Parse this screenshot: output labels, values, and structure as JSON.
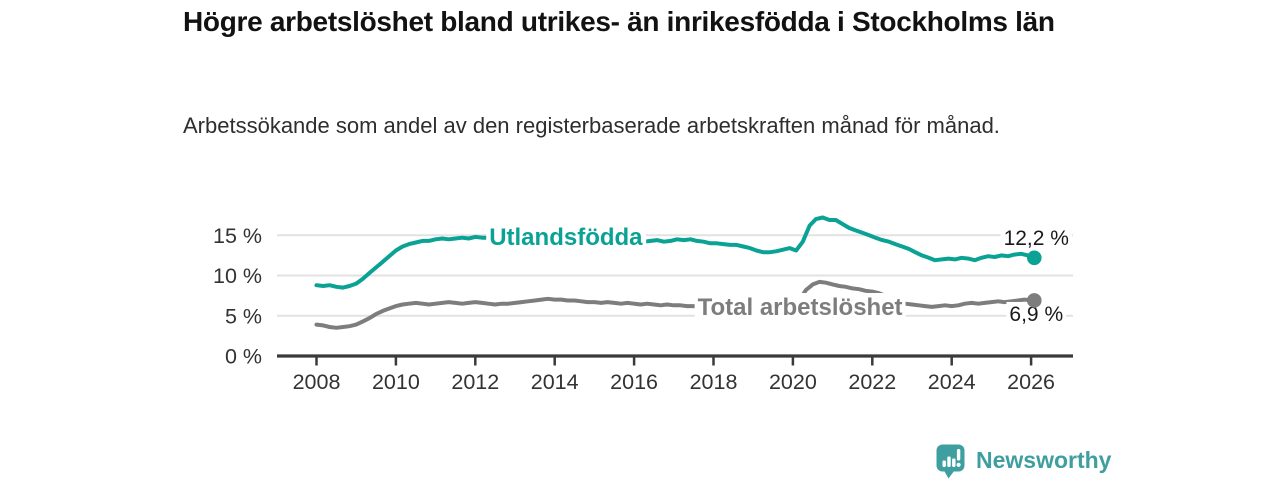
{
  "header": {
    "title": "Högre arbetslöshet bland utrikes- än inrikesfödda i Stockholms län",
    "subtitle": "Arbetssökande som andel av den registerbaserade arbetskraften månad för månad."
  },
  "branding": {
    "name": "Newsworthy",
    "icon": "bar-chart-speech-bubble-icon",
    "color": "#3f9fa0"
  },
  "chart_data": {
    "type": "line",
    "title": "Högre arbetslöshet bland utrikes- än inrikesfödda i Stockholms län",
    "xlabel": "",
    "ylabel": "",
    "unit": "%",
    "grid": "horizontal",
    "legend": "inline-series-labels",
    "xlim": [
      2007.1,
      2027.2
    ],
    "ylim": [
      0,
      17.6
    ],
    "x_ticks": [
      2008,
      2010,
      2012,
      2014,
      2016,
      2018,
      2020,
      2022,
      2024,
      2026
    ],
    "y_ticks": [
      {
        "value": 0,
        "label": "0 %"
      },
      {
        "value": 5,
        "label": "5 %"
      },
      {
        "value": 10,
        "label": "10 %"
      },
      {
        "value": 15,
        "label": "15 %"
      }
    ],
    "series": [
      {
        "name": "Utlandsfödda",
        "color": "#0aa295",
        "end_label": "12,2 %",
        "end_label_position": "above",
        "end_dot": true,
        "inline_label": {
          "text": "Utlandsfödda",
          "x": 2012.35,
          "value": 14.85
        },
        "points": [
          [
            2008.0,
            8.8
          ],
          [
            2008.17,
            8.7
          ],
          [
            2008.33,
            8.8
          ],
          [
            2008.5,
            8.6
          ],
          [
            2008.67,
            8.5
          ],
          [
            2008.83,
            8.7
          ],
          [
            2009.0,
            9.0
          ],
          [
            2009.17,
            9.6
          ],
          [
            2009.33,
            10.3
          ],
          [
            2009.5,
            11.0
          ],
          [
            2009.67,
            11.7
          ],
          [
            2009.83,
            12.4
          ],
          [
            2010.0,
            13.1
          ],
          [
            2010.17,
            13.6
          ],
          [
            2010.33,
            13.9
          ],
          [
            2010.5,
            14.1
          ],
          [
            2010.67,
            14.3
          ],
          [
            2010.83,
            14.3
          ],
          [
            2011.0,
            14.5
          ],
          [
            2011.17,
            14.6
          ],
          [
            2011.33,
            14.5
          ],
          [
            2011.5,
            14.6
          ],
          [
            2011.67,
            14.7
          ],
          [
            2011.83,
            14.6
          ],
          [
            2012.0,
            14.8
          ],
          [
            2012.17,
            14.7
          ],
          [
            2012.33,
            14.7
          ],
          [
            2012.58,
            14.6
          ],
          [
            2012.83,
            14.7
          ],
          [
            2013.08,
            14.6
          ],
          [
            2013.33,
            14.5
          ],
          [
            2013.58,
            14.6
          ],
          [
            2013.83,
            14.4
          ],
          [
            2014.08,
            14.3
          ],
          [
            2014.33,
            14.4
          ],
          [
            2014.58,
            14.2
          ],
          [
            2014.83,
            14.3
          ],
          [
            2015.08,
            14.2
          ],
          [
            2015.33,
            14.4
          ],
          [
            2015.58,
            14.3
          ],
          [
            2015.83,
            14.4
          ],
          [
            2016.08,
            14.4
          ],
          [
            2016.25,
            14.2
          ],
          [
            2016.42,
            14.3
          ],
          [
            2016.58,
            14.4
          ],
          [
            2016.75,
            14.2
          ],
          [
            2016.92,
            14.3
          ],
          [
            2017.08,
            14.5
          ],
          [
            2017.25,
            14.4
          ],
          [
            2017.42,
            14.5
          ],
          [
            2017.58,
            14.3
          ],
          [
            2017.75,
            14.2
          ],
          [
            2017.92,
            14.0
          ],
          [
            2018.08,
            14.0
          ],
          [
            2018.25,
            13.9
          ],
          [
            2018.42,
            13.8
          ],
          [
            2018.58,
            13.8
          ],
          [
            2018.75,
            13.6
          ],
          [
            2018.92,
            13.4
          ],
          [
            2019.08,
            13.1
          ],
          [
            2019.25,
            12.9
          ],
          [
            2019.42,
            12.9
          ],
          [
            2019.58,
            13.0
          ],
          [
            2019.75,
            13.2
          ],
          [
            2019.92,
            13.4
          ],
          [
            2020.08,
            13.1
          ],
          [
            2020.25,
            14.2
          ],
          [
            2020.42,
            16.2
          ],
          [
            2020.58,
            17.0
          ],
          [
            2020.75,
            17.2
          ],
          [
            2020.92,
            16.9
          ],
          [
            2021.08,
            16.9
          ],
          [
            2021.25,
            16.4
          ],
          [
            2021.42,
            15.9
          ],
          [
            2021.58,
            15.6
          ],
          [
            2021.75,
            15.3
          ],
          [
            2021.92,
            15.0
          ],
          [
            2022.08,
            14.7
          ],
          [
            2022.25,
            14.4
          ],
          [
            2022.42,
            14.2
          ],
          [
            2022.58,
            13.9
          ],
          [
            2022.75,
            13.6
          ],
          [
            2022.92,
            13.3
          ],
          [
            2023.08,
            12.9
          ],
          [
            2023.25,
            12.5
          ],
          [
            2023.42,
            12.2
          ],
          [
            2023.58,
            11.9
          ],
          [
            2023.75,
            12.0
          ],
          [
            2023.92,
            12.1
          ],
          [
            2024.08,
            12.0
          ],
          [
            2024.25,
            12.2
          ],
          [
            2024.42,
            12.1
          ],
          [
            2024.58,
            11.9
          ],
          [
            2024.75,
            12.2
          ],
          [
            2024.92,
            12.4
          ],
          [
            2025.08,
            12.3
          ],
          [
            2025.25,
            12.5
          ],
          [
            2025.42,
            12.4
          ],
          [
            2025.58,
            12.6
          ],
          [
            2025.75,
            12.7
          ],
          [
            2025.92,
            12.5
          ],
          [
            2026.08,
            12.2
          ]
        ]
      },
      {
        "name": "Total arbetslöshet",
        "color": "#7d7d7d",
        "end_label": "6,9 %",
        "end_label_position": "below",
        "end_dot": true,
        "inline_label": {
          "text": "Total arbetslöshet",
          "x": 2017.6,
          "value": 6.15
        },
        "points": [
          [
            2008.0,
            3.9
          ],
          [
            2008.17,
            3.8
          ],
          [
            2008.33,
            3.6
          ],
          [
            2008.5,
            3.5
          ],
          [
            2008.67,
            3.6
          ],
          [
            2008.83,
            3.7
          ],
          [
            2009.0,
            3.9
          ],
          [
            2009.17,
            4.3
          ],
          [
            2009.33,
            4.7
          ],
          [
            2009.5,
            5.2
          ],
          [
            2009.67,
            5.6
          ],
          [
            2009.83,
            5.9
          ],
          [
            2010.0,
            6.2
          ],
          [
            2010.17,
            6.4
          ],
          [
            2010.33,
            6.5
          ],
          [
            2010.5,
            6.6
          ],
          [
            2010.67,
            6.5
          ],
          [
            2010.83,
            6.4
          ],
          [
            2011.0,
            6.5
          ],
          [
            2011.17,
            6.6
          ],
          [
            2011.33,
            6.7
          ],
          [
            2011.5,
            6.6
          ],
          [
            2011.67,
            6.5
          ],
          [
            2011.83,
            6.6
          ],
          [
            2012.0,
            6.7
          ],
          [
            2012.17,
            6.6
          ],
          [
            2012.33,
            6.5
          ],
          [
            2012.5,
            6.4
          ],
          [
            2012.67,
            6.5
          ],
          [
            2012.83,
            6.5
          ],
          [
            2013.0,
            6.6
          ],
          [
            2013.17,
            6.7
          ],
          [
            2013.33,
            6.8
          ],
          [
            2013.5,
            6.9
          ],
          [
            2013.67,
            7.0
          ],
          [
            2013.83,
            7.1
          ],
          [
            2014.0,
            7.0
          ],
          [
            2014.17,
            7.0
          ],
          [
            2014.33,
            6.9
          ],
          [
            2014.5,
            6.9
          ],
          [
            2014.67,
            6.8
          ],
          [
            2014.83,
            6.7
          ],
          [
            2015.0,
            6.7
          ],
          [
            2015.17,
            6.6
          ],
          [
            2015.33,
            6.7
          ],
          [
            2015.5,
            6.6
          ],
          [
            2015.67,
            6.5
          ],
          [
            2015.83,
            6.6
          ],
          [
            2016.0,
            6.5
          ],
          [
            2016.17,
            6.4
          ],
          [
            2016.33,
            6.5
          ],
          [
            2016.5,
            6.4
          ],
          [
            2016.67,
            6.3
          ],
          [
            2016.83,
            6.4
          ],
          [
            2017.0,
            6.3
          ],
          [
            2017.17,
            6.3
          ],
          [
            2017.33,
            6.2
          ],
          [
            2017.5,
            6.2
          ],
          [
            2017.67,
            6.1
          ],
          [
            2017.83,
            6.1
          ],
          [
            2018.0,
            6.1
          ],
          [
            2018.17,
            6.0
          ],
          [
            2018.33,
            6.0
          ],
          [
            2018.5,
            5.9
          ],
          [
            2018.67,
            5.9
          ],
          [
            2018.83,
            6.0
          ],
          [
            2019.0,
            6.0
          ],
          [
            2019.17,
            6.0
          ],
          [
            2019.33,
            6.1
          ],
          [
            2019.5,
            6.1
          ],
          [
            2019.67,
            6.2
          ],
          [
            2019.83,
            6.3
          ],
          [
            2020.0,
            6.4
          ],
          [
            2020.17,
            7.0
          ],
          [
            2020.33,
            8.2
          ],
          [
            2020.5,
            8.9
          ],
          [
            2020.67,
            9.2
          ],
          [
            2020.83,
            9.1
          ],
          [
            2021.0,
            8.9
          ],
          [
            2021.17,
            8.7
          ],
          [
            2021.33,
            8.6
          ],
          [
            2021.5,
            8.4
          ],
          [
            2021.67,
            8.3
          ],
          [
            2021.83,
            8.1
          ],
          [
            2022.0,
            8.0
          ],
          [
            2022.17,
            7.8
          ],
          [
            2022.33,
            7.5
          ],
          [
            2022.5,
            7.1
          ],
          [
            2022.67,
            6.8
          ],
          [
            2022.83,
            6.5
          ],
          [
            2023.0,
            6.4
          ],
          [
            2023.17,
            6.3
          ],
          [
            2023.33,
            6.2
          ],
          [
            2023.5,
            6.1
          ],
          [
            2023.67,
            6.2
          ],
          [
            2023.83,
            6.3
          ],
          [
            2024.0,
            6.2
          ],
          [
            2024.17,
            6.3
          ],
          [
            2024.33,
            6.5
          ],
          [
            2024.5,
            6.6
          ],
          [
            2024.67,
            6.5
          ],
          [
            2024.83,
            6.6
          ],
          [
            2025.0,
            6.7
          ],
          [
            2025.17,
            6.8
          ],
          [
            2025.33,
            6.7
          ],
          [
            2025.5,
            6.8
          ],
          [
            2025.67,
            6.9
          ],
          [
            2025.83,
            7.0
          ],
          [
            2026.08,
            6.9
          ]
        ]
      }
    ]
  }
}
